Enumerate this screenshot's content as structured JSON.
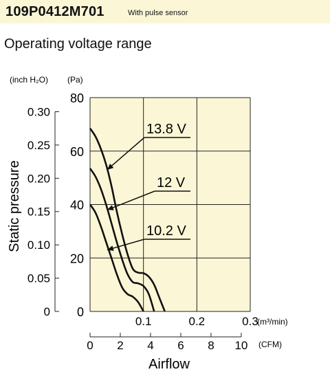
{
  "header": {
    "model": "109P0412M701",
    "subtitle": "With pulse sensor"
  },
  "section_title": "Operating voltage range",
  "chart_data": {
    "type": "line",
    "xlabel": "Airflow",
    "ylabel": "Static pressure",
    "y_unit_left": "(inch H₂O)",
    "y_unit_right": "(Pa)",
    "x_unit_top": "(m³/min)",
    "x_unit_bottom": "(CFM)",
    "xlim": [
      0,
      0.3
    ],
    "ylim": [
      0,
      80
    ],
    "grid": true,
    "background": "#fbf6d6",
    "pa_ticks": [
      "0",
      "20",
      "40",
      "60",
      "80"
    ],
    "pa_values": [
      0,
      20,
      40,
      60,
      80
    ],
    "inch_ticks": [
      "0",
      "0.05",
      "0.10",
      "0.15",
      "0.20",
      "0.25",
      "0.30"
    ],
    "inch_values": [
      0,
      0.05,
      0.1,
      0.15,
      0.2,
      0.25,
      0.3
    ],
    "m3_ticks": [
      "0.1",
      "0.2",
      "0.3"
    ],
    "m3_values": [
      0.1,
      0.2,
      0.3
    ],
    "cfm_ticks": [
      "0",
      "2",
      "4",
      "6",
      "8",
      "10"
    ],
    "cfm_values": [
      0,
      2,
      4,
      6,
      8,
      10
    ],
    "series": [
      {
        "name": "13.8 V",
        "x": [
          0,
          0.01,
          0.02,
          0.03,
          0.04,
          0.05,
          0.06,
          0.07,
          0.08,
          0.09,
          0.1,
          0.11,
          0.12,
          0.13,
          0.14
        ],
        "y": [
          68.5,
          65.5,
          61,
          55,
          47,
          37.5,
          29,
          21.5,
          16,
          14.5,
          14.3,
          13,
          10,
          5,
          0
        ]
      },
      {
        "name": "12 V",
        "x": [
          0,
          0.01,
          0.02,
          0.03,
          0.04,
          0.05,
          0.06,
          0.07,
          0.08,
          0.09,
          0.1,
          0.11,
          0.12
        ],
        "y": [
          53.5,
          50.5,
          46,
          40,
          33,
          26,
          19.5,
          14,
          11,
          10.5,
          9.5,
          6.5,
          0
        ]
      },
      {
        "name": "10.2 V",
        "x": [
          0,
          0.01,
          0.02,
          0.03,
          0.04,
          0.05,
          0.06,
          0.07,
          0.08,
          0.09,
          0.1
        ],
        "y": [
          40,
          37,
          32,
          26,
          20,
          14,
          9,
          6.5,
          5.5,
          3.5,
          0
        ]
      }
    ]
  }
}
